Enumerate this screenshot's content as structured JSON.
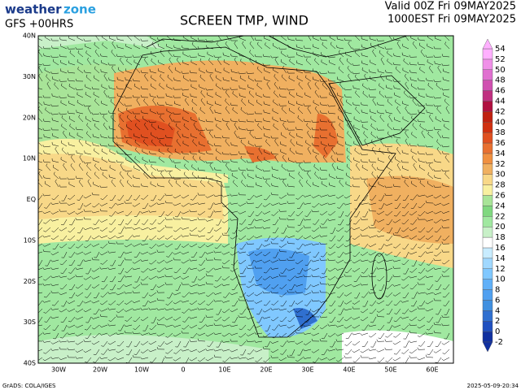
{
  "header": {
    "logo_a": "weather",
    "logo_b": "zone",
    "model": "GFS +00HRS",
    "title": "SCREEN TMP, WIND",
    "valid": "Valid 00Z Fri 09MAY2025",
    "local": "1000EST Fri 09MAY2025"
  },
  "map": {
    "lat_labels": [
      "40N",
      "30N",
      "20N",
      "10N",
      "EQ",
      "10S",
      "20S",
      "30S",
      "40S"
    ],
    "lon_labels": [
      "30W",
      "20W",
      "10W",
      "0",
      "10E",
      "20E",
      "30E",
      "40E",
      "50E",
      "60E"
    ]
  },
  "colorbar": {
    "levels": [
      -2,
      0,
      2,
      4,
      6,
      8,
      10,
      12,
      14,
      16,
      18,
      20,
      22,
      24,
      26,
      28,
      30,
      32,
      34,
      36,
      38,
      40,
      42,
      44,
      46,
      48,
      50,
      52,
      54
    ],
    "colors": [
      "#1030a0",
      "#2050c0",
      "#3070d0",
      "#4090e0",
      "#50a0f0",
      "#60b0f8",
      "#80c8ff",
      "#a0d8ff",
      "#c8ecff",
      "#ffffff",
      "#c8f0c8",
      "#a0e8a0",
      "#80d880",
      "#a8e498",
      "#f8f0a0",
      "#f8d888",
      "#f0b060",
      "#f09040",
      "#e87030",
      "#e05020",
      "#d03010",
      "#c02010",
      "#b01040",
      "#c03080",
      "#d050b0",
      "#e070d0",
      "#f090e8",
      "#ffb0ff"
    ]
  },
  "footer": {
    "credit": "GrADS: COLA/IGES",
    "stamp": "2025-05-09-20:34"
  }
}
